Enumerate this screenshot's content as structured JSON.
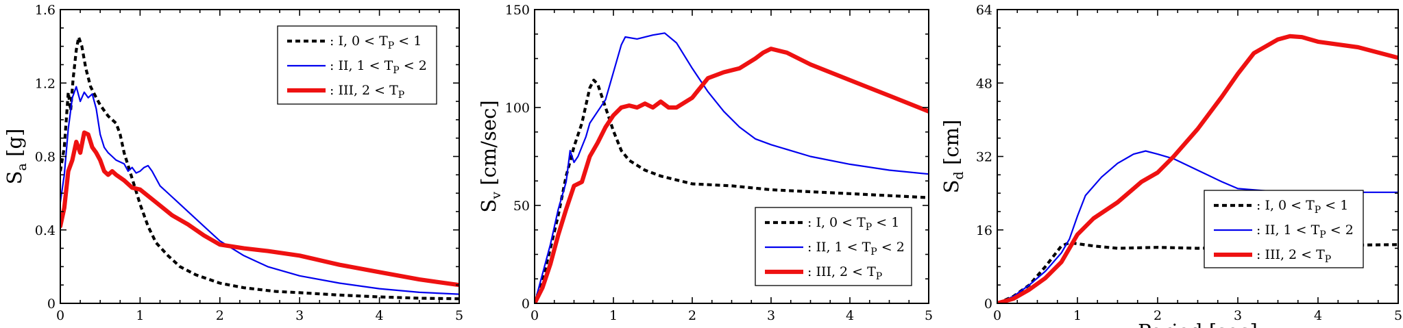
{
  "colors": {
    "I": "#000000",
    "II": "#0000ee",
    "III": "#ee1111"
  },
  "series_styles": {
    "I": {
      "dash": "7,5",
      "width": 4.2
    },
    "II": {
      "dash": "",
      "width": 2.2
    },
    "III": {
      "dash": "",
      "width": 6.2
    }
  },
  "legend_labels": {
    "I": {
      "pre": ": I, 0 < T",
      "sub": "P",
      "post": " < 1"
    },
    "II": {
      "pre": ": II, 1 < T",
      "sub": "P",
      "post": " < 2"
    },
    "III": {
      "pre": ": III, 2 < T",
      "sub": "P",
      "post": ""
    }
  },
  "chart_data": [
    {
      "type": "line",
      "ylabel": {
        "base": "S",
        "sub": "a",
        "unit": " [g]"
      },
      "xlabel": "",
      "xlim": [
        0,
        5
      ],
      "ylim": [
        0,
        1.6
      ],
      "xticks": [
        "0",
        "1",
        "2",
        "3",
        "4",
        "5"
      ],
      "yticks": [
        "0",
        "0.4",
        "0.8",
        "1.2",
        "1.6"
      ],
      "legend_position": "top-right",
      "series": [
        {
          "key": "I",
          "points": [
            [
              0,
              0.72
            ],
            [
              0.05,
              0.85
            ],
            [
              0.1,
              1.15
            ],
            [
              0.13,
              1.05
            ],
            [
              0.16,
              1.22
            ],
            [
              0.2,
              1.38
            ],
            [
              0.23,
              1.45
            ],
            [
              0.27,
              1.4
            ],
            [
              0.32,
              1.28
            ],
            [
              0.38,
              1.18
            ],
            [
              0.45,
              1.12
            ],
            [
              0.5,
              1.08
            ],
            [
              0.55,
              1.05
            ],
            [
              0.6,
              1.02
            ],
            [
              0.7,
              0.98
            ],
            [
              0.75,
              0.92
            ],
            [
              0.8,
              0.82
            ],
            [
              0.9,
              0.68
            ],
            [
              1.0,
              0.54
            ],
            [
              1.1,
              0.42
            ],
            [
              1.2,
              0.33
            ],
            [
              1.35,
              0.26
            ],
            [
              1.5,
              0.2
            ],
            [
              1.7,
              0.155
            ],
            [
              2.0,
              0.11
            ],
            [
              2.3,
              0.085
            ],
            [
              2.7,
              0.065
            ],
            [
              3.0,
              0.058
            ],
            [
              3.5,
              0.045
            ],
            [
              4.0,
              0.035
            ],
            [
              4.5,
              0.028
            ],
            [
              5.0,
              0.025
            ]
          ]
        },
        {
          "key": "II",
          "points": [
            [
              0,
              0.55
            ],
            [
              0.05,
              0.7
            ],
            [
              0.1,
              0.95
            ],
            [
              0.15,
              1.12
            ],
            [
              0.2,
              1.18
            ],
            [
              0.25,
              1.1
            ],
            [
              0.3,
              1.15
            ],
            [
              0.35,
              1.12
            ],
            [
              0.4,
              1.14
            ],
            [
              0.45,
              1.06
            ],
            [
              0.5,
              0.92
            ],
            [
              0.55,
              0.85
            ],
            [
              0.6,
              0.82
            ],
            [
              0.65,
              0.8
            ],
            [
              0.7,
              0.78
            ],
            [
              0.8,
              0.76
            ],
            [
              0.85,
              0.72
            ],
            [
              0.9,
              0.74
            ],
            [
              0.95,
              0.71
            ],
            [
              1.0,
              0.72
            ],
            [
              1.05,
              0.74
            ],
            [
              1.1,
              0.75
            ],
            [
              1.15,
              0.72
            ],
            [
              1.25,
              0.64
            ],
            [
              1.4,
              0.58
            ],
            [
              1.6,
              0.5
            ],
            [
              1.8,
              0.42
            ],
            [
              2.0,
              0.34
            ],
            [
              2.3,
              0.26
            ],
            [
              2.6,
              0.2
            ],
            [
              3.0,
              0.15
            ],
            [
              3.5,
              0.11
            ],
            [
              4.0,
              0.08
            ],
            [
              4.5,
              0.06
            ],
            [
              5.0,
              0.05
            ]
          ]
        },
        {
          "key": "III",
          "points": [
            [
              0,
              0.42
            ],
            [
              0.05,
              0.52
            ],
            [
              0.1,
              0.72
            ],
            [
              0.15,
              0.78
            ],
            [
              0.2,
              0.88
            ],
            [
              0.25,
              0.82
            ],
            [
              0.3,
              0.93
            ],
            [
              0.35,
              0.92
            ],
            [
              0.4,
              0.85
            ],
            [
              0.45,
              0.82
            ],
            [
              0.5,
              0.78
            ],
            [
              0.55,
              0.72
            ],
            [
              0.6,
              0.7
            ],
            [
              0.65,
              0.72
            ],
            [
              0.7,
              0.7
            ],
            [
              0.8,
              0.67
            ],
            [
              0.9,
              0.63
            ],
            [
              1.0,
              0.62
            ],
            [
              1.2,
              0.55
            ],
            [
              1.4,
              0.48
            ],
            [
              1.6,
              0.43
            ],
            [
              1.8,
              0.37
            ],
            [
              2.0,
              0.32
            ],
            [
              2.3,
              0.3
            ],
            [
              2.6,
              0.285
            ],
            [
              3.0,
              0.26
            ],
            [
              3.5,
              0.21
            ],
            [
              4.0,
              0.17
            ],
            [
              4.5,
              0.13
            ],
            [
              5.0,
              0.1
            ]
          ]
        }
      ]
    },
    {
      "type": "line",
      "ylabel": {
        "base": "S",
        "sub": "v",
        "unit": " [cm/sec]"
      },
      "xlabel": "",
      "xlim": [
        0,
        5
      ],
      "ylim": [
        0,
        150
      ],
      "xticks": [
        "0",
        "1",
        "2",
        "3",
        "4",
        "5"
      ],
      "yticks": [
        "0",
        "50",
        "100",
        "150"
      ],
      "legend_position": "bottom-right",
      "series": [
        {
          "key": "I",
          "points": [
            [
              0,
              0
            ],
            [
              0.1,
              12
            ],
            [
              0.2,
              28
            ],
            [
              0.3,
              45
            ],
            [
              0.4,
              65
            ],
            [
              0.5,
              80
            ],
            [
              0.6,
              92
            ],
            [
              0.7,
              110
            ],
            [
              0.75,
              114
            ],
            [
              0.8,
              112
            ],
            [
              0.9,
              100
            ],
            [
              1.0,
              88
            ],
            [
              1.1,
              78
            ],
            [
              1.2,
              73
            ],
            [
              1.4,
              68
            ],
            [
              1.6,
              65
            ],
            [
              1.8,
              63
            ],
            [
              2.0,
              61
            ],
            [
              2.5,
              60
            ],
            [
              3.0,
              58
            ],
            [
              3.5,
              57
            ],
            [
              4.0,
              56
            ],
            [
              4.5,
              55
            ],
            [
              5.0,
              54
            ]
          ]
        },
        {
          "key": "II",
          "points": [
            [
              0,
              0
            ],
            [
              0.1,
              15
            ],
            [
              0.2,
              30
            ],
            [
              0.3,
              48
            ],
            [
              0.4,
              62
            ],
            [
              0.45,
              78
            ],
            [
              0.5,
              72
            ],
            [
              0.55,
              75
            ],
            [
              0.65,
              85
            ],
            [
              0.7,
              92
            ],
            [
              0.8,
              98
            ],
            [
              0.9,
              104
            ],
            [
              1.0,
              118
            ],
            [
              1.1,
              132
            ],
            [
              1.15,
              136
            ],
            [
              1.3,
              135
            ],
            [
              1.5,
              137
            ],
            [
              1.65,
              138
            ],
            [
              1.8,
              133
            ],
            [
              2.0,
              120
            ],
            [
              2.2,
              108
            ],
            [
              2.4,
              98
            ],
            [
              2.6,
              90
            ],
            [
              2.8,
              84
            ],
            [
              3.0,
              81
            ],
            [
              3.5,
              75
            ],
            [
              4.0,
              71
            ],
            [
              4.5,
              68
            ],
            [
              5.0,
              66
            ]
          ]
        },
        {
          "key": "III",
          "points": [
            [
              0,
              0
            ],
            [
              0.1,
              8
            ],
            [
              0.2,
              20
            ],
            [
              0.3,
              35
            ],
            [
              0.4,
              48
            ],
            [
              0.5,
              60
            ],
            [
              0.6,
              62
            ],
            [
              0.7,
              75
            ],
            [
              0.8,
              82
            ],
            [
              0.9,
              90
            ],
            [
              1.0,
              96
            ],
            [
              1.1,
              100
            ],
            [
              1.2,
              101
            ],
            [
              1.3,
              100
            ],
            [
              1.4,
              102
            ],
            [
              1.5,
              100
            ],
            [
              1.6,
              103
            ],
            [
              1.7,
              100
            ],
            [
              1.8,
              100
            ],
            [
              2.0,
              105
            ],
            [
              2.2,
              115
            ],
            [
              2.4,
              118
            ],
            [
              2.6,
              120
            ],
            [
              2.8,
              125
            ],
            [
              2.9,
              128
            ],
            [
              3.0,
              130
            ],
            [
              3.2,
              128
            ],
            [
              3.5,
              122
            ],
            [
              4.0,
              114
            ],
            [
              4.5,
              106
            ],
            [
              5.0,
              98
            ]
          ]
        }
      ]
    },
    {
      "type": "line",
      "ylabel": {
        "base": "S",
        "sub": "d",
        "unit": " [cm]"
      },
      "xlabel": "Period [sec]",
      "xlim": [
        0,
        5
      ],
      "ylim": [
        0,
        64
      ],
      "xticks": [
        "0",
        "1",
        "2",
        "3",
        "4",
        "5"
      ],
      "yticks": [
        "0",
        "16",
        "32",
        "48",
        "64"
      ],
      "legend_position": "bottom-right",
      "series": [
        {
          "key": "I",
          "points": [
            [
              0,
              0
            ],
            [
              0.2,
              1.5
            ],
            [
              0.4,
              4
            ],
            [
              0.6,
              8
            ],
            [
              0.8,
              12.5
            ],
            [
              0.9,
              13.2
            ],
            [
              1.0,
              13
            ],
            [
              1.2,
              12.5
            ],
            [
              1.5,
              12
            ],
            [
              2.0,
              12.2
            ],
            [
              2.5,
              12
            ],
            [
              3.0,
              12.2
            ],
            [
              3.5,
              12.5
            ],
            [
              4.0,
              12.5
            ],
            [
              4.5,
              12.7
            ],
            [
              5.0,
              12.8
            ]
          ]
        },
        {
          "key": "II",
          "points": [
            [
              0,
              0
            ],
            [
              0.2,
              1.5
            ],
            [
              0.4,
              4
            ],
            [
              0.6,
              7
            ],
            [
              0.8,
              11
            ],
            [
              0.9,
              14
            ],
            [
              1.0,
              19
            ],
            [
              1.1,
              23.5
            ],
            [
              1.3,
              27.5
            ],
            [
              1.5,
              30.5
            ],
            [
              1.7,
              32.5
            ],
            [
              1.85,
              33.2
            ],
            [
              2.0,
              32.5
            ],
            [
              2.2,
              31.5
            ],
            [
              2.5,
              29
            ],
            [
              2.8,
              26.5
            ],
            [
              3.0,
              25
            ],
            [
              3.5,
              24.3
            ],
            [
              4.0,
              24.5
            ],
            [
              4.5,
              24.2
            ],
            [
              5.0,
              24.2
            ]
          ]
        },
        {
          "key": "III",
          "points": [
            [
              0,
              0
            ],
            [
              0.2,
              1
            ],
            [
              0.4,
              3
            ],
            [
              0.6,
              5.5
            ],
            [
              0.8,
              9
            ],
            [
              1.0,
              15
            ],
            [
              1.2,
              18.5
            ],
            [
              1.5,
              22
            ],
            [
              1.8,
              26.5
            ],
            [
              2.0,
              28.5
            ],
            [
              2.2,
              32
            ],
            [
              2.5,
              38
            ],
            [
              2.8,
              45
            ],
            [
              3.0,
              50
            ],
            [
              3.2,
              54.5
            ],
            [
              3.5,
              57.5
            ],
            [
              3.65,
              58.2
            ],
            [
              3.8,
              58
            ],
            [
              4.0,
              57
            ],
            [
              4.5,
              55.8
            ],
            [
              5.0,
              53.5
            ]
          ]
        }
      ]
    }
  ]
}
